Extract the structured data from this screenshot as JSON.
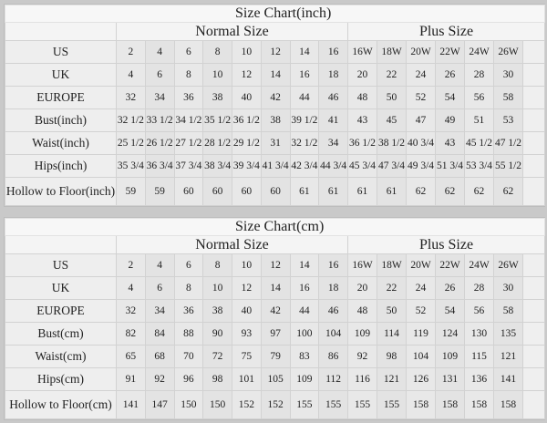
{
  "tables": [
    {
      "title": "Size Chart(inch)",
      "normal_label": "Normal Size",
      "plus_label": "Plus Size",
      "rows": [
        {
          "label": "US",
          "normal": [
            "2",
            "4",
            "6",
            "8",
            "10",
            "12",
            "14",
            "16"
          ],
          "plus": [
            "16W",
            "18W",
            "20W",
            "22W",
            "24W",
            "26W"
          ]
        },
        {
          "label": "UK",
          "normal": [
            "4",
            "6",
            "8",
            "10",
            "12",
            "14",
            "16",
            "18"
          ],
          "plus": [
            "20",
            "22",
            "24",
            "26",
            "28",
            "30"
          ]
        },
        {
          "label": "EUROPE",
          "normal": [
            "32",
            "34",
            "36",
            "38",
            "40",
            "42",
            "44",
            "46"
          ],
          "plus": [
            "48",
            "50",
            "52",
            "54",
            "56",
            "58"
          ]
        },
        {
          "label": "Bust(inch)",
          "normal": [
            "32 1/2",
            "33 1/2",
            "34 1/2",
            "35 1/2",
            "36 1/2",
            "38",
            "39 1/2",
            "41"
          ],
          "plus": [
            "43",
            "45",
            "47",
            "49",
            "51",
            "53"
          ]
        },
        {
          "label": "Waist(inch)",
          "normal": [
            "25 1/2",
            "26 1/2",
            "27 1/2",
            "28 1/2",
            "29 1/2",
            "31",
            "32 1/2",
            "34"
          ],
          "plus": [
            "36 1/2",
            "38 1/2",
            "40 3/4",
            "43",
            "45 1/2",
            "47 1/2"
          ]
        },
        {
          "label": "Hips(inch)",
          "normal": [
            "35 3/4",
            "36 3/4",
            "37 3/4",
            "38 3/4",
            "39 3/4",
            "41 3/4",
            "42 3/4",
            "44 3/4"
          ],
          "plus": [
            "45 3/4",
            "47 3/4",
            "49 3/4",
            "51 3/4",
            "53 3/4",
            "55 1/2"
          ]
        },
        {
          "label": "Hollow to Floor(inch)",
          "normal": [
            "59",
            "59",
            "60",
            "60",
            "60",
            "60",
            "61",
            "61"
          ],
          "plus": [
            "61",
            "61",
            "62",
            "62",
            "62",
            "62"
          ]
        }
      ]
    },
    {
      "title": "Size Chart(cm)",
      "normal_label": "Normal Size",
      "plus_label": "Plus Size",
      "rows": [
        {
          "label": "US",
          "normal": [
            "2",
            "4",
            "6",
            "8",
            "10",
            "12",
            "14",
            "16"
          ],
          "plus": [
            "16W",
            "18W",
            "20W",
            "22W",
            "24W",
            "26W"
          ]
        },
        {
          "label": "UK",
          "normal": [
            "4",
            "6",
            "8",
            "10",
            "12",
            "14",
            "16",
            "18"
          ],
          "plus": [
            "20",
            "22",
            "24",
            "26",
            "28",
            "30"
          ]
        },
        {
          "label": "EUROPE",
          "normal": [
            "32",
            "34",
            "36",
            "38",
            "40",
            "42",
            "44",
            "46"
          ],
          "plus": [
            "48",
            "50",
            "52",
            "54",
            "56",
            "58"
          ]
        },
        {
          "label": "Bust(cm)",
          "normal": [
            "82",
            "84",
            "88",
            "90",
            "93",
            "97",
            "100",
            "104"
          ],
          "plus": [
            "109",
            "114",
            "119",
            "124",
            "130",
            "135"
          ]
        },
        {
          "label": "Waist(cm)",
          "normal": [
            "65",
            "68",
            "70",
            "72",
            "75",
            "79",
            "83",
            "86"
          ],
          "plus": [
            "92",
            "98",
            "104",
            "109",
            "115",
            "121"
          ]
        },
        {
          "label": "Hips(cm)",
          "normal": [
            "91",
            "92",
            "96",
            "98",
            "101",
            "105",
            "109",
            "112"
          ],
          "plus": [
            "116",
            "121",
            "126",
            "131",
            "136",
            "141"
          ]
        },
        {
          "label": "Hollow to Floor(cm)",
          "normal": [
            "141",
            "147",
            "150",
            "150",
            "152",
            "152",
            "155",
            "155"
          ],
          "plus": [
            "155",
            "155",
            "158",
            "158",
            "158",
            "158"
          ]
        }
      ]
    }
  ]
}
